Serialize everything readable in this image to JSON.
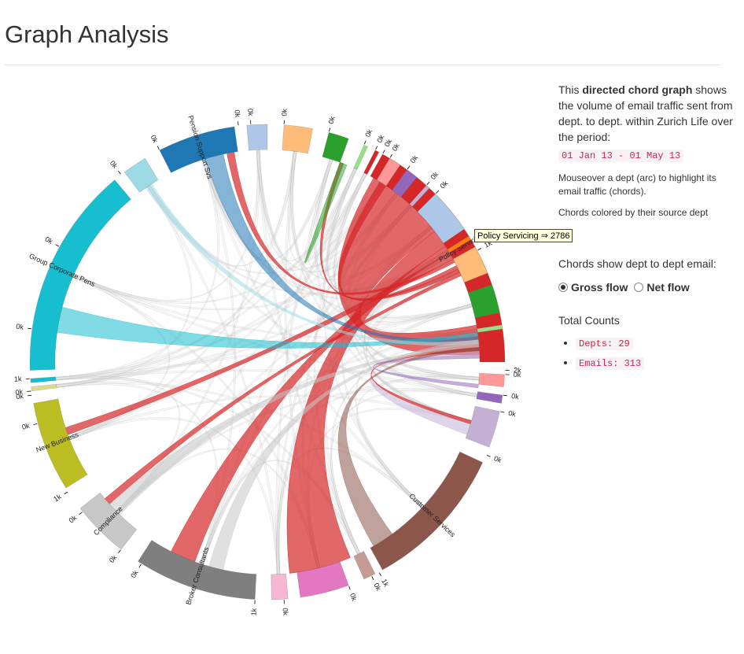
{
  "page": {
    "title": "Graph Analysis"
  },
  "sidebar": {
    "intro_prefix": "This ",
    "intro_bold": "directed chord graph",
    "intro_rest": " shows the volume of email traffic sent from dept. to dept. within Zurich Life over the period:",
    "period": "01 Jan 13 - 01 May 13",
    "hint": "Mouseover a dept (arc) to highlight its email traffic (chords).",
    "color_note": "Chords colored by their source dept",
    "flow_prompt": "Chords show dept to dept email:",
    "gross_label": "Gross flow",
    "net_label": "Net flow",
    "gross_selected": true,
    "totals_heading": "Total Counts",
    "depts": "Depts: 29",
    "emails": "Emails: 313"
  },
  "tooltip": {
    "text": "Policy Servicing ⇒ 2786"
  },
  "chord": {
    "groups": [
      {
        "id": "policy",
        "label": "Policy Servicing",
        "color": "#d62728"
      },
      {
        "id": "pink1",
        "label": "",
        "color": "#ff9896"
      },
      {
        "id": "purple1",
        "label": "",
        "color": "#9467bd"
      },
      {
        "id": "lavender",
        "label": "",
        "color": "#c5b0d5"
      },
      {
        "id": "customer",
        "label": "Customer Services",
        "color": "#8c564b"
      },
      {
        "id": "tan",
        "label": "",
        "color": "#c49c94"
      },
      {
        "id": "magenta",
        "label": "",
        "color": "#e377c2"
      },
      {
        "id": "lightpink",
        "label": "",
        "color": "#f7b6d2"
      },
      {
        "id": "broker",
        "label": "Broker Consultants",
        "color": "#7f7f7f"
      },
      {
        "id": "compliance",
        "label": "Compliance",
        "color": "#c7c7c7"
      },
      {
        "id": "newbiz",
        "label": "New Business",
        "color": "#bcbd22"
      },
      {
        "id": "tiny1",
        "label": "",
        "color": "#dbdb8d"
      },
      {
        "id": "tiny2",
        "label": "",
        "color": "#17becf"
      },
      {
        "id": "group",
        "label": "Group Corporate Pens",
        "color": "#17becf"
      },
      {
        "id": "lightcyan",
        "label": "",
        "color": "#9edae5"
      },
      {
        "id": "pension",
        "label": "Pension Support Svs",
        "color": "#1f77b4"
      },
      {
        "id": "lightblue1",
        "label": "",
        "color": "#aec7e8"
      },
      {
        "id": "orange1",
        "label": "",
        "color": "#ffbb78"
      },
      {
        "id": "green1",
        "label": "",
        "color": "#2ca02c"
      },
      {
        "id": "thin1",
        "label": "",
        "color": "#98df8a"
      },
      {
        "id": "thin2",
        "label": "",
        "color": "#d62728"
      },
      {
        "id": "salmon",
        "label": "",
        "color": "#ff9896"
      },
      {
        "id": "purple2",
        "label": "",
        "color": "#9467bd"
      },
      {
        "id": "thin3",
        "label": "",
        "color": "#c5b0d5"
      },
      {
        "id": "lightblue2",
        "label": "",
        "color": "#aec7e8"
      },
      {
        "id": "thin4",
        "label": "",
        "color": "#ff7f0e"
      },
      {
        "id": "orange2",
        "label": "",
        "color": "#ffbb78"
      },
      {
        "id": "green2",
        "label": "",
        "color": "#2ca02c"
      },
      {
        "id": "thin5",
        "label": "",
        "color": "#98df8a"
      }
    ],
    "tick_labels": [
      "0k",
      "1k",
      "2k",
      "0k",
      "0k",
      "0k",
      "0k",
      "1k",
      "0k",
      "0k",
      "0k",
      "1k",
      "0k",
      "0k",
      "0k",
      "1k",
      "0k",
      "0k",
      "0k",
      "1k",
      "0k",
      "0k",
      "0k",
      "0k",
      "0k",
      "0k",
      "0k",
      "0k",
      "0k",
      "0k",
      "0k",
      "0k",
      "0k",
      "0k"
    ]
  }
}
